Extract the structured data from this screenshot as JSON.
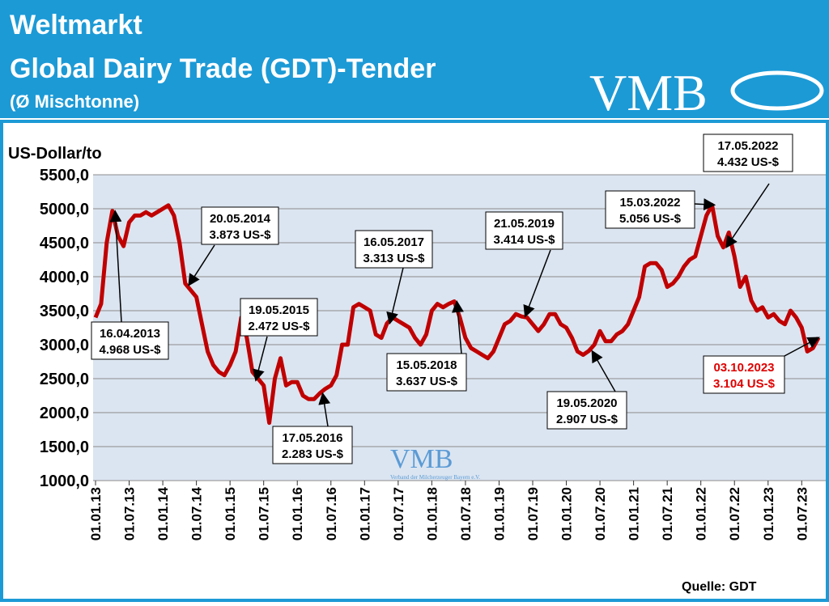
{
  "header": {
    "title": "Weltmarkt",
    "subtitle": "Global Dairy Trade (GDT)-Tender",
    "note": "(Ø Mischtonne)",
    "logo": "VMB"
  },
  "chart_data": {
    "type": "line",
    "y_label": "US-Dollar/to",
    "source": "Quelle: GDT",
    "watermark": {
      "logo": "VMB",
      "text": "Verband der Milcherzeuger Bayern e.V."
    },
    "xlim": [
      "01.01.13",
      "01.11.23"
    ],
    "xticks": [
      "01.01.13",
      "01.07.13",
      "01.01.14",
      "01.07.14",
      "01.01.15",
      "01.07.15",
      "01.01.16",
      "01.07.16",
      "01.01.17",
      "01.07.17",
      "01.01.18",
      "01.07.18",
      "01.01.19",
      "01.07.19",
      "01.01.20",
      "01.07.20",
      "01.01.21",
      "01.07.21",
      "01.01.22",
      "01.07.22",
      "01.01.23",
      "01.07.23"
    ],
    "ylim": [
      1000,
      5500
    ],
    "yticks": [
      {
        "value": 1000,
        "label": "1000,0"
      },
      {
        "value": 1500,
        "label": "1500,0"
      },
      {
        "value": 2000,
        "label": "2000,0"
      },
      {
        "value": 2500,
        "label": "2500,0"
      },
      {
        "value": 3000,
        "label": "3000,0"
      },
      {
        "value": 3500,
        "label": "3500,0"
      },
      {
        "value": 4000,
        "label": "4000,0"
      },
      {
        "value": 4500,
        "label": "4500,0"
      },
      {
        "value": 5000,
        "label": "5000,0"
      },
      {
        "value": 5500,
        "label": "5500,0"
      }
    ],
    "grid": true,
    "x": [
      "01.01.13",
      "01.02.13",
      "01.03.13",
      "01.04.13",
      "01.05.13",
      "01.06.13",
      "01.07.13",
      "01.08.13",
      "01.09.13",
      "01.10.13",
      "01.11.13",
      "01.12.13",
      "01.01.14",
      "01.02.14",
      "01.03.14",
      "01.04.14",
      "01.05.14",
      "01.06.14",
      "01.07.14",
      "01.08.14",
      "01.09.14",
      "01.10.14",
      "01.11.14",
      "01.12.14",
      "01.01.15",
      "01.02.15",
      "01.03.15",
      "01.04.15",
      "01.05.15",
      "01.06.15",
      "01.07.15",
      "01.08.15",
      "01.09.15",
      "01.10.15",
      "01.11.15",
      "01.12.15",
      "01.01.16",
      "01.02.16",
      "01.03.16",
      "01.04.16",
      "01.05.16",
      "01.06.16",
      "01.07.16",
      "01.08.16",
      "01.09.16",
      "01.10.16",
      "01.11.16",
      "01.12.16",
      "01.01.17",
      "01.02.17",
      "01.03.17",
      "01.04.17",
      "01.05.17",
      "01.06.17",
      "01.07.17",
      "01.08.17",
      "01.09.17",
      "01.10.17",
      "01.11.17",
      "01.12.17",
      "01.01.18",
      "01.02.18",
      "01.03.18",
      "01.04.18",
      "01.05.18",
      "01.06.18",
      "01.07.18",
      "01.08.18",
      "01.09.18",
      "01.10.18",
      "01.11.18",
      "01.12.18",
      "01.01.19",
      "01.02.19",
      "01.03.19",
      "01.04.19",
      "01.05.19",
      "01.06.19",
      "01.07.19",
      "01.08.19",
      "01.09.19",
      "01.10.19",
      "01.11.19",
      "01.12.19",
      "01.01.20",
      "01.02.20",
      "01.03.20",
      "01.04.20",
      "01.05.20",
      "01.06.20",
      "01.07.20",
      "01.08.20",
      "01.09.20",
      "01.10.20",
      "01.11.20",
      "01.12.20",
      "01.01.21",
      "01.02.21",
      "01.03.21",
      "01.04.21",
      "01.05.21",
      "01.06.21",
      "01.07.21",
      "01.08.21",
      "01.09.21",
      "01.10.21",
      "01.11.21",
      "01.12.21",
      "01.01.22",
      "01.02.22",
      "01.03.22",
      "01.04.22",
      "01.05.22",
      "01.06.22",
      "01.07.22",
      "01.08.22",
      "01.09.22",
      "01.10.22",
      "01.11.22",
      "01.12.22",
      "01.01.23",
      "01.02.23",
      "01.03.23",
      "01.04.23",
      "01.05.23",
      "01.06.23",
      "01.07.23",
      "01.08.23",
      "01.09.23",
      "01.10.23"
    ],
    "series": [
      {
        "name": "GDT",
        "color": "#c00000",
        "values": [
          3400,
          3600,
          4500,
          4968,
          4600,
          4450,
          4800,
          4900,
          4900,
          4950,
          4900,
          4950,
          5000,
          5050,
          4900,
          4500,
          3900,
          3800,
          3700,
          3300,
          2900,
          2700,
          2600,
          2550,
          2700,
          2900,
          3400,
          3100,
          2600,
          2500,
          2400,
          1850,
          2500,
          2800,
          2400,
          2450,
          2450,
          2250,
          2200,
          2200,
          2283,
          2350,
          2400,
          2550,
          3000,
          3000,
          3550,
          3600,
          3550,
          3500,
          3150,
          3100,
          3313,
          3400,
          3350,
          3300,
          3250,
          3100,
          3000,
          3150,
          3500,
          3600,
          3550,
          3600,
          3637,
          3400,
          3100,
          2950,
          2900,
          2850,
          2800,
          2900,
          3100,
          3300,
          3350,
          3450,
          3414,
          3400,
          3300,
          3200,
          3300,
          3450,
          3450,
          3300,
          3250,
          3100,
          2900,
          2850,
          2907,
          3000,
          3200,
          3050,
          3050,
          3150,
          3200,
          3300,
          3500,
          3700,
          4150,
          4200,
          4200,
          4100,
          3850,
          3900,
          4000,
          4150,
          4250,
          4300,
          4600,
          4900,
          5056,
          4600,
          4432,
          4650,
          4300,
          3850,
          4000,
          3650,
          3500,
          3550,
          3400,
          3450,
          3350,
          3300,
          3500,
          3400,
          3250,
          2900,
          2950,
          3104
        ]
      }
    ],
    "annotations": [
      {
        "date": "16.04.2013",
        "label": "4.968 US-$",
        "value": 4968
      },
      {
        "date": "20.05.2014",
        "label": "3.873 US-$",
        "value": 3873
      },
      {
        "date": "19.05.2015",
        "label": "2.472 US-$",
        "value": 2472
      },
      {
        "date": "17.05.2016",
        "label": "2.283 US-$",
        "value": 2283
      },
      {
        "date": "16.05.2017",
        "label": "3.313 US-$",
        "value": 3313
      },
      {
        "date": "15.05.2018",
        "label": "3.637 US-$",
        "value": 3637
      },
      {
        "date": "21.05.2019",
        "label": "3.414 US-$",
        "value": 3414
      },
      {
        "date": "19.05.2020",
        "label": "2.907 US-$",
        "value": 2907
      },
      {
        "date": "15.03.2022",
        "label": "5.056 US-$",
        "value": 5056
      },
      {
        "date": "17.05.2022",
        "label": "4.432 US-$",
        "value": 4432
      },
      {
        "date": "03.10.2023",
        "label": "3.104 US-$",
        "value": 3104,
        "color": "#e00000"
      }
    ]
  }
}
